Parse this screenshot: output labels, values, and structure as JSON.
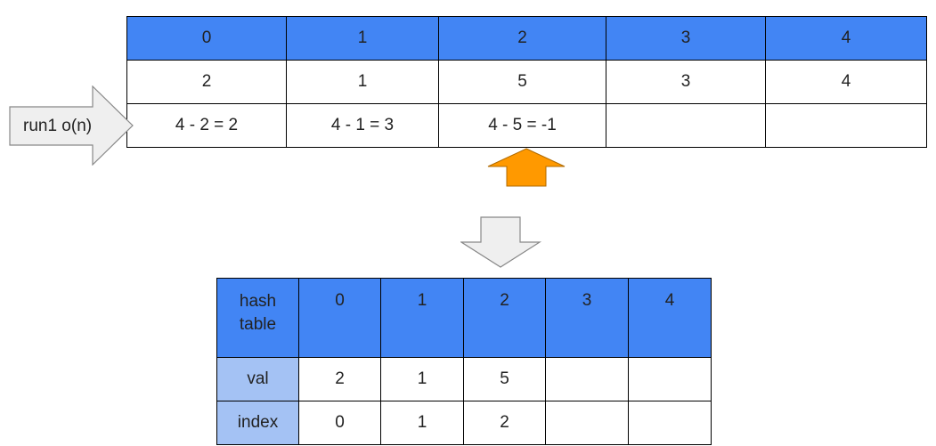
{
  "top_table": {
    "headers": [
      "0",
      "1",
      "2",
      "3",
      "4"
    ],
    "values": [
      "2",
      "1",
      "5",
      "3",
      "4"
    ],
    "diffs": [
      "4 - 2 = 2",
      "4 - 1 = 3",
      "4 - 5 = -1",
      "",
      ""
    ]
  },
  "run_arrow": {
    "label": "run1 o(n)"
  },
  "hash_table": {
    "corner_line1": "hash",
    "corner_line2": "table",
    "headers": [
      "0",
      "1",
      "2",
      "3",
      "4"
    ],
    "rows": [
      {
        "label": "val",
        "cells": [
          "2",
          "1",
          "5",
          "",
          ""
        ]
      },
      {
        "label": "index",
        "cells": [
          "0",
          "1",
          "2",
          "",
          ""
        ]
      }
    ]
  },
  "colors": {
    "header_blue": "#4285f4",
    "row_label_blue": "#a4c2f4",
    "pointer_orange": "#ff9900",
    "arrow_grey": "#efefef"
  }
}
